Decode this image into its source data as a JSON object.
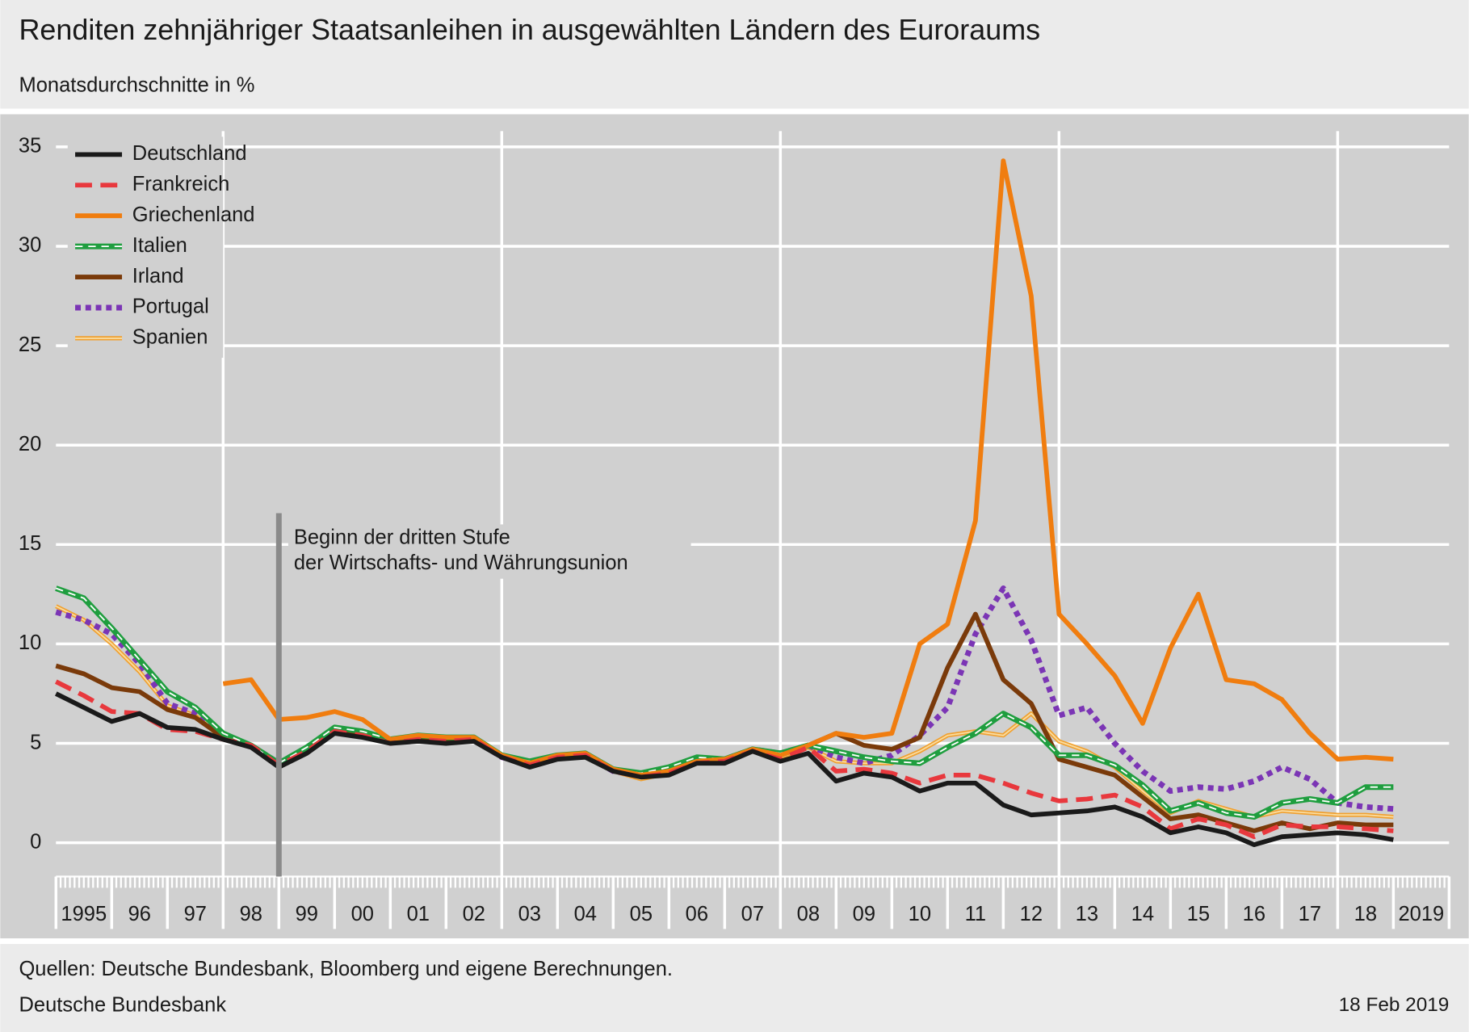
{
  "chart_data": {
    "type": "line",
    "title": "Renditen zehnjähriger Staatsanleihen in ausgewählten Ländern des Euroraums",
    "subtitle": "Monatsdurchschnitte in %",
    "source": "Quellen: Deutsche Bundesbank, Bloomberg und eigene Berechnungen.",
    "publisher": "Deutsche Bundesbank",
    "date": "18 Feb 2019",
    "annotation": {
      "x": 1999,
      "lines": [
        "Beginn der dritten Stufe",
        "der Wirtschafts- und Währungsunion"
      ]
    },
    "xlim": [
      1995,
      2020
    ],
    "ylim": [
      -1.7,
      36.5
    ],
    "yticks": [
      0,
      5,
      10,
      15,
      20,
      25,
      30,
      35
    ],
    "xticks": [
      {
        "value": 1995,
        "label": "1995"
      },
      {
        "value": 1996,
        "label": "96"
      },
      {
        "value": 1997,
        "label": "97"
      },
      {
        "value": 1998,
        "label": "98"
      },
      {
        "value": 1999,
        "label": "99"
      },
      {
        "value": 2000,
        "label": "00"
      },
      {
        "value": 2001,
        "label": "01"
      },
      {
        "value": 2002,
        "label": "02"
      },
      {
        "value": 2003,
        "label": "03"
      },
      {
        "value": 2004,
        "label": "04"
      },
      {
        "value": 2005,
        "label": "05"
      },
      {
        "value": 2006,
        "label": "06"
      },
      {
        "value": 2007,
        "label": "07"
      },
      {
        "value": 2008,
        "label": "08"
      },
      {
        "value": 2009,
        "label": "09"
      },
      {
        "value": 2010,
        "label": "10"
      },
      {
        "value": 2011,
        "label": "11"
      },
      {
        "value": 2012,
        "label": "12"
      },
      {
        "value": 2013,
        "label": "13"
      },
      {
        "value": 2014,
        "label": "14"
      },
      {
        "value": 2015,
        "label": "15"
      },
      {
        "value": 2016,
        "label": "16"
      },
      {
        "value": 2017,
        "label": "17"
      },
      {
        "value": 2018,
        "label": "18"
      },
      {
        "value": 2019,
        "label": "2019"
      }
    ],
    "xgrid": [
      1998,
      2003,
      2008,
      2013,
      2018
    ],
    "grid": true,
    "legend": "top-left",
    "x": [
      1995,
      1995.5,
      1996,
      1996.5,
      1997,
      1997.5,
      1998,
      1998.5,
      1999,
      1999.5,
      2000,
      2000.5,
      2001,
      2001.5,
      2002,
      2002.5,
      2003,
      2003.5,
      2004,
      2004.5,
      2005,
      2005.5,
      2006,
      2006.5,
      2007,
      2007.5,
      2008,
      2008.5,
      2009,
      2009.5,
      2010,
      2010.5,
      2011,
      2011.5,
      2012,
      2012.5,
      2013,
      2013.5,
      2014,
      2014.5,
      2015,
      2015.5,
      2016,
      2016.5,
      2017,
      2017.5,
      2018,
      2018.5,
      2019
    ],
    "series": [
      {
        "name": "Deutschland",
        "color": "#1a1a1a",
        "style": "solid",
        "values": [
          7.5,
          6.8,
          6.1,
          6.5,
          5.8,
          5.7,
          5.2,
          4.8,
          3.8,
          4.5,
          5.5,
          5.3,
          5.0,
          5.1,
          5.0,
          5.1,
          4.3,
          3.8,
          4.2,
          4.3,
          3.6,
          3.3,
          3.4,
          4.0,
          4.0,
          4.6,
          4.1,
          4.5,
          3.1,
          3.5,
          3.3,
          2.6,
          3.0,
          3.0,
          1.9,
          1.4,
          1.5,
          1.6,
          1.8,
          1.3,
          0.5,
          0.8,
          0.5,
          -0.1,
          0.3,
          0.4,
          0.5,
          0.4,
          0.15
        ]
      },
      {
        "name": "Frankreich",
        "color": "#e8383d",
        "style": "dashed",
        "values": [
          8.1,
          7.4,
          6.6,
          6.5,
          5.7,
          5.6,
          5.2,
          4.9,
          3.9,
          4.6,
          5.6,
          5.4,
          5.0,
          5.2,
          5.1,
          5.2,
          4.3,
          3.9,
          4.3,
          4.4,
          3.6,
          3.3,
          3.5,
          4.0,
          4.1,
          4.6,
          4.2,
          4.8,
          3.6,
          3.7,
          3.5,
          3.0,
          3.4,
          3.4,
          3.0,
          2.5,
          2.1,
          2.2,
          2.4,
          1.8,
          0.7,
          1.2,
          0.9,
          0.3,
          0.9,
          0.8,
          0.8,
          0.7,
          0.6
        ]
      },
      {
        "name": "Griechenland",
        "color": "#f07d0f",
        "style": "solid",
        "values": [
          null,
          null,
          null,
          null,
          null,
          null,
          8.0,
          8.2,
          6.2,
          6.3,
          6.6,
          6.2,
          5.2,
          5.4,
          5.3,
          5.3,
          4.4,
          4.0,
          4.4,
          4.5,
          3.7,
          3.4,
          3.6,
          4.1,
          4.2,
          4.7,
          4.4,
          4.9,
          5.5,
          5.3,
          5.5,
          10.0,
          11.0,
          16.2,
          34.3,
          27.5,
          11.5,
          10.0,
          8.4,
          6.0,
          9.8,
          12.5,
          8.2,
          8.0,
          7.2,
          5.5,
          4.2,
          4.3,
          4.2
        ]
      },
      {
        "name": "Italien",
        "color": "#1f9e3f",
        "style": "striped",
        "values": [
          12.8,
          12.3,
          10.8,
          9.2,
          7.6,
          6.8,
          5.5,
          4.9,
          4.0,
          4.8,
          5.8,
          5.6,
          5.2,
          5.4,
          5.3,
          5.3,
          4.4,
          4.1,
          4.4,
          4.5,
          3.7,
          3.5,
          3.8,
          4.3,
          4.2,
          4.7,
          4.5,
          4.9,
          4.6,
          4.3,
          4.1,
          4.0,
          4.8,
          5.5,
          6.5,
          5.8,
          4.4,
          4.4,
          3.9,
          2.9,
          1.6,
          2.0,
          1.5,
          1.3,
          2.0,
          2.2,
          2.0,
          2.8,
          2.8
        ]
      },
      {
        "name": "Irland",
        "color": "#7a3a0a",
        "style": "solid",
        "values": [
          8.9,
          8.5,
          7.8,
          7.6,
          6.7,
          6.3,
          5.3,
          4.9,
          3.9,
          4.7,
          5.6,
          5.5,
          5.1,
          5.3,
          5.2,
          5.2,
          4.3,
          4.0,
          4.3,
          4.4,
          3.6,
          3.4,
          3.6,
          4.1,
          4.1,
          4.7,
          4.4,
          4.9,
          5.5,
          4.9,
          4.7,
          5.3,
          8.8,
          11.5,
          8.2,
          7.0,
          4.2,
          3.8,
          3.4,
          2.3,
          1.2,
          1.4,
          1.0,
          0.6,
          1.0,
          0.7,
          1.0,
          0.9,
          0.9
        ]
      },
      {
        "name": "Portugal",
        "color": "#7b35b5",
        "style": "dotted",
        "values": [
          11.6,
          11.2,
          10.5,
          9.0,
          7.0,
          6.5,
          5.3,
          4.9,
          4.0,
          4.8,
          5.7,
          5.5,
          5.2,
          5.3,
          5.2,
          5.2,
          4.3,
          4.0,
          4.3,
          4.4,
          3.6,
          3.4,
          3.6,
          4.1,
          4.2,
          4.7,
          4.5,
          4.9,
          4.3,
          4.0,
          4.4,
          5.4,
          6.8,
          10.5,
          12.8,
          10.2,
          6.4,
          6.8,
          5.0,
          3.6,
          2.6,
          2.8,
          2.7,
          3.1,
          3.8,
          3.2,
          2.0,
          1.8,
          1.7
        ]
      },
      {
        "name": "Spanien",
        "color": "#f0a030",
        "style": "double",
        "values": [
          11.9,
          11.2,
          10.0,
          8.6,
          6.9,
          6.4,
          5.2,
          4.9,
          3.9,
          4.8,
          5.7,
          5.5,
          5.1,
          5.3,
          5.1,
          5.2,
          4.3,
          3.9,
          4.3,
          4.3,
          3.6,
          3.2,
          3.5,
          4.0,
          4.1,
          4.6,
          4.3,
          4.8,
          4.1,
          4.0,
          4.0,
          4.6,
          5.4,
          5.6,
          5.4,
          6.5,
          5.1,
          4.6,
          3.8,
          2.6,
          1.5,
          2.1,
          1.7,
          1.3,
          1.6,
          1.5,
          1.4,
          1.4,
          1.3
        ]
      }
    ]
  }
}
